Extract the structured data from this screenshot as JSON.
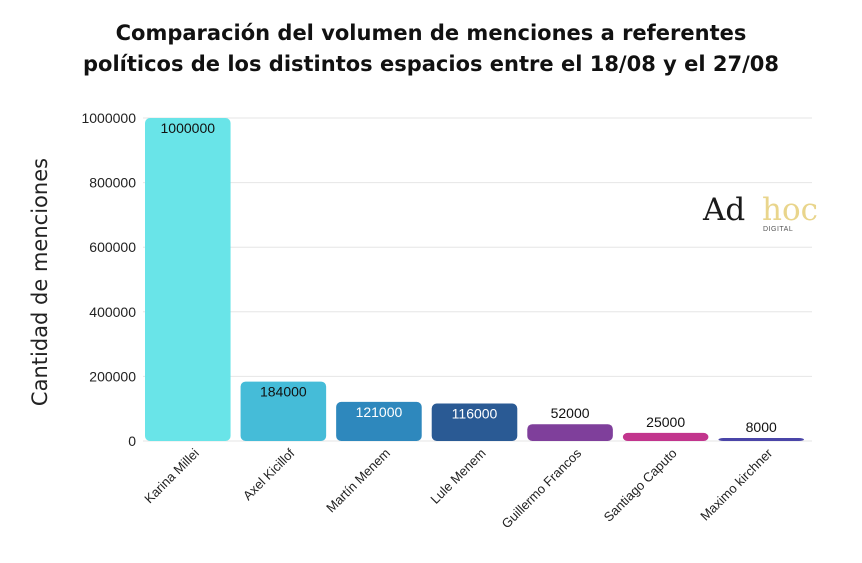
{
  "chart_data": {
    "type": "bar",
    "title_lines": [
      "Comparación del volumen de menciones a referentes",
      "políticos de los distintos espacios entre el 18/08 y el 27/08"
    ],
    "ylabel": "Cantidad de menciones",
    "xlabel": "",
    "ylim": [
      0,
      1000000
    ],
    "yticks": [
      "0",
      "200000",
      "400000",
      "600000",
      "800000",
      "1000000"
    ],
    "grid": true,
    "categories": [
      "Karina Millei",
      "Axel Kicillof",
      "Martín Menem",
      "Lule Menem",
      "Guillermo Francos",
      "Santiago Caputo",
      "Maximo kirchner"
    ],
    "values": [
      1000000,
      184000,
      121000,
      116000,
      52000,
      25000,
      8000
    ],
    "data_labels": [
      "1000000",
      "184000",
      "121000",
      "116000",
      "52000",
      "25000",
      "8000"
    ],
    "colors": [
      "#69e4e8",
      "#45bcd8",
      "#2e88bd",
      "#2a5a94",
      "#7f3f9b",
      "#c2358d",
      "#4a45a8"
    ],
    "label_colors": [
      "#111111",
      "#111111",
      "#ffffff",
      "#ffffff",
      "#111111",
      "#111111",
      "#111111"
    ]
  },
  "logo": {
    "part1": "Ad",
    "part2": "hoc",
    "subtext": "DIGITAL",
    "colors": [
      "#1a1a1a",
      "#e9d58c"
    ]
  }
}
